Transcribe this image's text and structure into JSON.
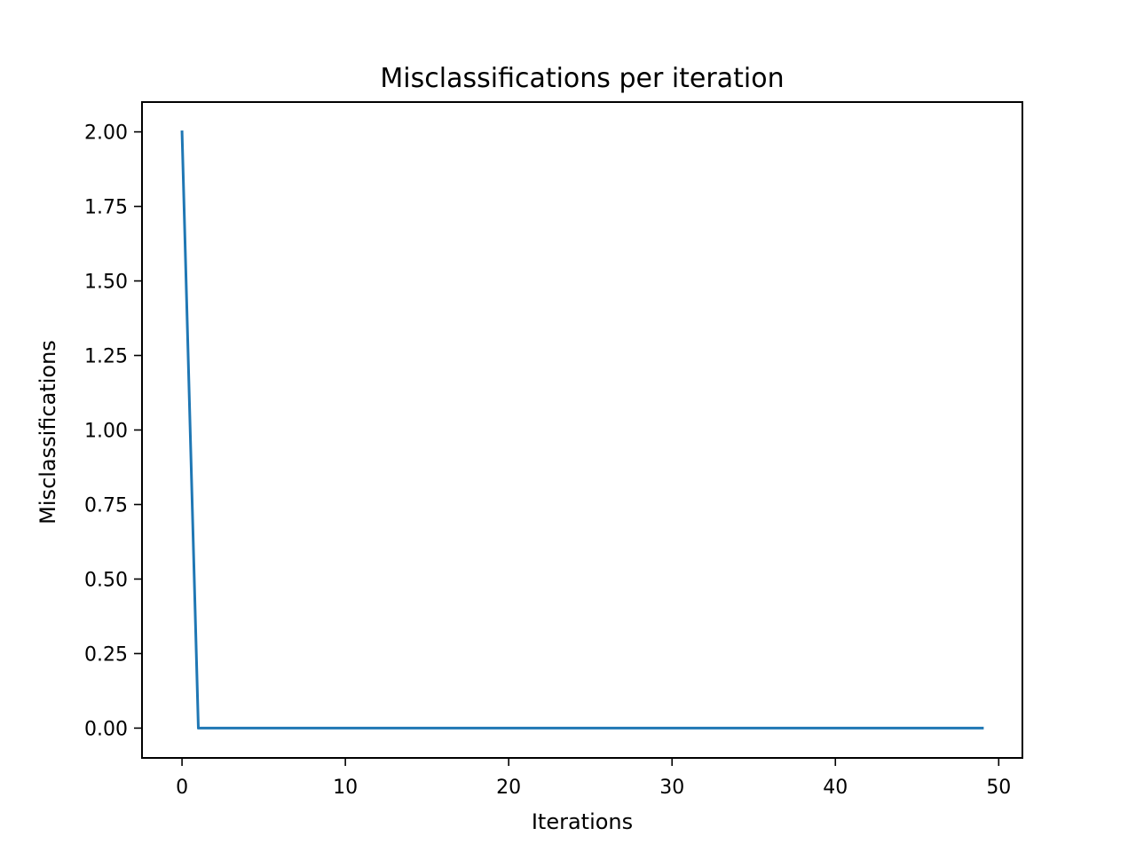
{
  "chart_data": {
    "type": "line",
    "title": "Misclassifications per iteration",
    "xlabel": "Iterations",
    "ylabel": "Misclassifications",
    "xlim": [
      -2.45,
      51.45
    ],
    "ylim": [
      -0.1,
      2.1
    ],
    "xticks": [
      0,
      10,
      20,
      30,
      40,
      50
    ],
    "xtick_labels": [
      "0",
      "10",
      "20",
      "30",
      "40",
      "50"
    ],
    "yticks": [
      0.0,
      0.25,
      0.5,
      0.75,
      1.0,
      1.25,
      1.5,
      1.75,
      2.0
    ],
    "ytick_labels": [
      "0.00",
      "0.25",
      "0.50",
      "0.75",
      "1.00",
      "1.25",
      "1.50",
      "1.75",
      "2.00"
    ],
    "grid": false,
    "legend": "none",
    "series": [
      {
        "color": "#1f77b4",
        "x": [
          0,
          1,
          2,
          3,
          4,
          5,
          6,
          7,
          8,
          9,
          10,
          11,
          12,
          13,
          14,
          15,
          16,
          17,
          18,
          19,
          20,
          21,
          22,
          23,
          24,
          25,
          26,
          27,
          28,
          29,
          30,
          31,
          32,
          33,
          34,
          35,
          36,
          37,
          38,
          39,
          40,
          41,
          42,
          43,
          44,
          45,
          46,
          47,
          48,
          49
        ],
        "values": [
          2,
          0,
          0,
          0,
          0,
          0,
          0,
          0,
          0,
          0,
          0,
          0,
          0,
          0,
          0,
          0,
          0,
          0,
          0,
          0,
          0,
          0,
          0,
          0,
          0,
          0,
          0,
          0,
          0,
          0,
          0,
          0,
          0,
          0,
          0,
          0,
          0,
          0,
          0,
          0,
          0,
          0,
          0,
          0,
          0,
          0,
          0,
          0,
          0,
          0
        ]
      }
    ]
  }
}
